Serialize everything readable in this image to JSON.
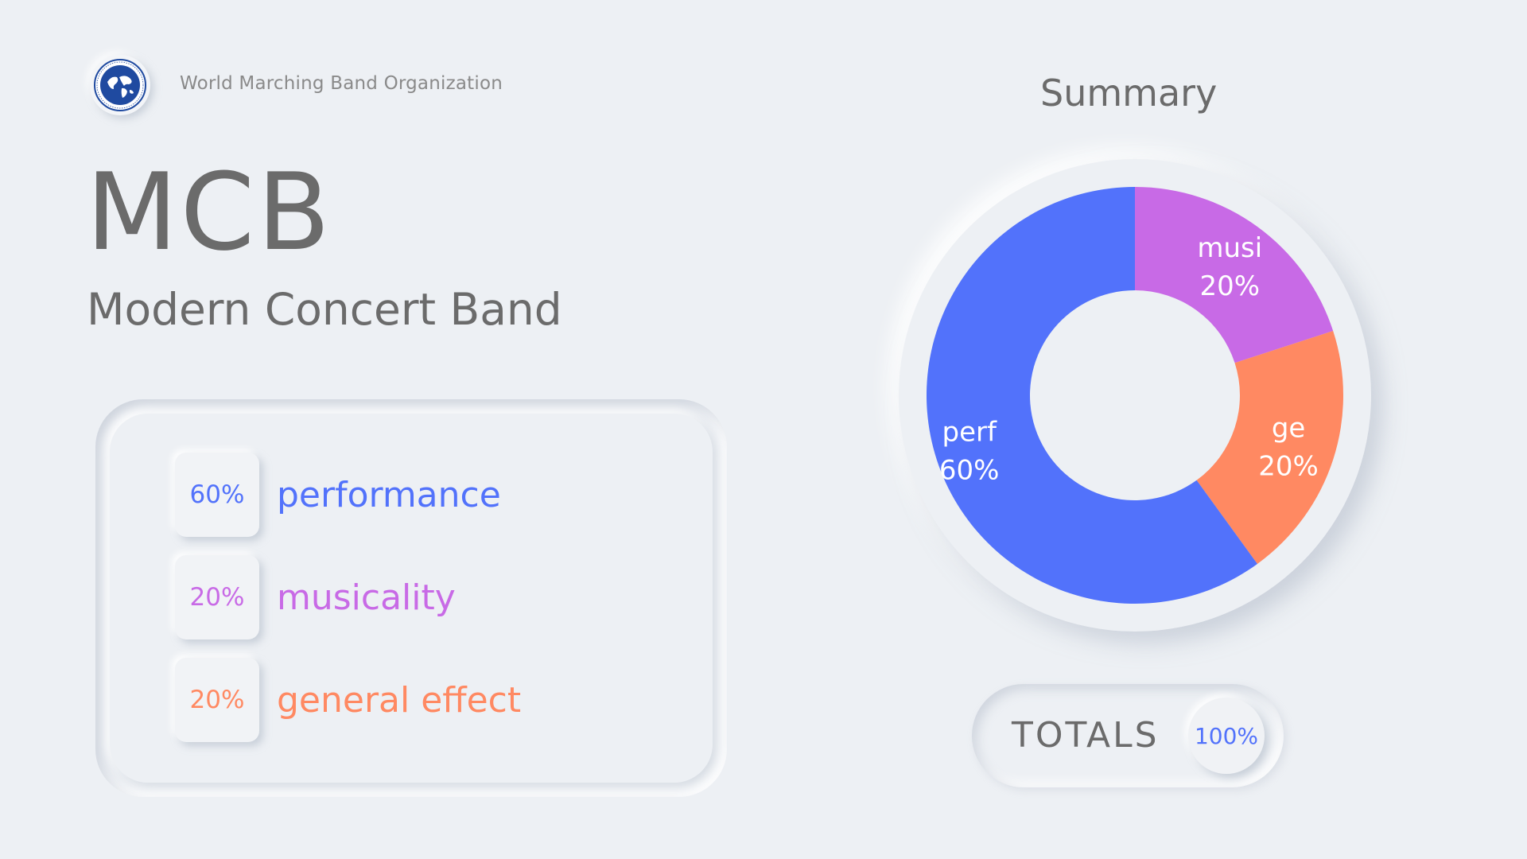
{
  "header": {
    "organization": "World Marching Band Organization",
    "acronym": "MCB",
    "full_name": "Modern Concert Band"
  },
  "colors": {
    "performance": "#5272fb",
    "musicality": "#c86ae6",
    "general_effect": "#ff8962",
    "text": "#6b6b6b"
  },
  "legend": [
    {
      "percent": "60%",
      "label": "performance",
      "color": "#5272fb"
    },
    {
      "percent": "20%",
      "label": "musicality",
      "color": "#c86ae6"
    },
    {
      "percent": "20%",
      "label": "general effect",
      "color": "#ff8962"
    }
  ],
  "summary": {
    "title": "Summary"
  },
  "totals": {
    "label": "TOTALS",
    "value": "100%"
  },
  "chart_data": {
    "type": "pie",
    "donut": true,
    "title": "Summary",
    "slices": [
      {
        "label": "musi",
        "value": 20,
        "display": "20%",
        "color": "#c86ae6"
      },
      {
        "label": "ge",
        "value": 20,
        "display": "20%",
        "color": "#ff8962"
      },
      {
        "label": "perf",
        "value": 60,
        "display": "60%",
        "color": "#5272fb"
      }
    ],
    "total": "100%"
  }
}
